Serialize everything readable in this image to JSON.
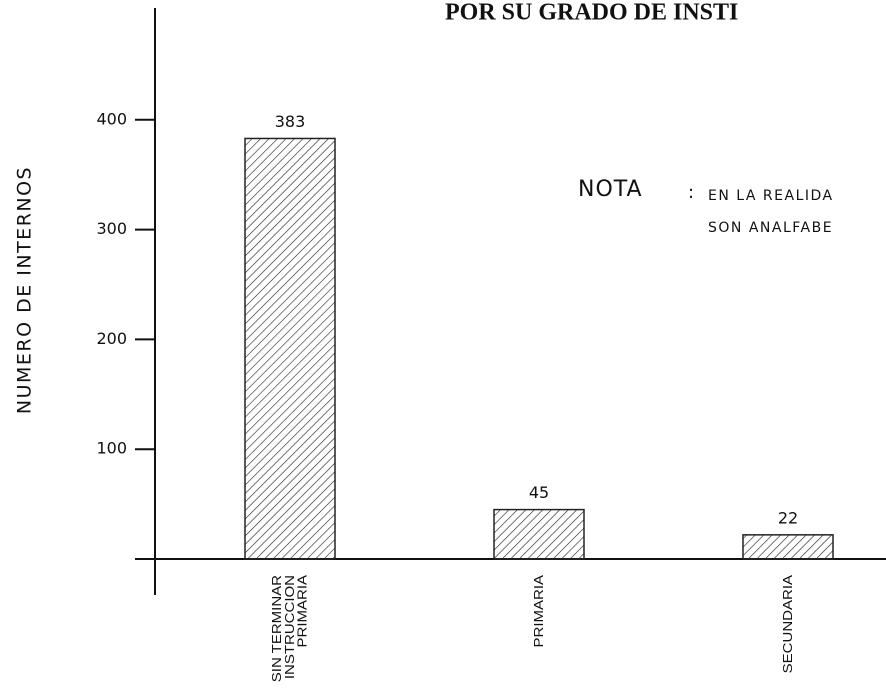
{
  "chart_data": {
    "type": "bar",
    "title": "POR SU GRADO DE INSTI",
    "y_label": "NUMERO DE INTERNOS",
    "categories": [
      "SIN TERMINAR\nINSTRUCCION\nPRIMARIA",
      "PRIMARIA",
      "SECUNDARIA"
    ],
    "values": [
      383,
      45,
      22
    ],
    "color": "#222222",
    "ylim": [
      0,
      500
    ],
    "yticks": [
      100,
      200,
      300,
      400
    ],
    "annotation": {
      "label": "NOTA",
      "separator": ":",
      "lines": [
        "EN LA REALIDA",
        "SON ANALFABE"
      ]
    }
  }
}
